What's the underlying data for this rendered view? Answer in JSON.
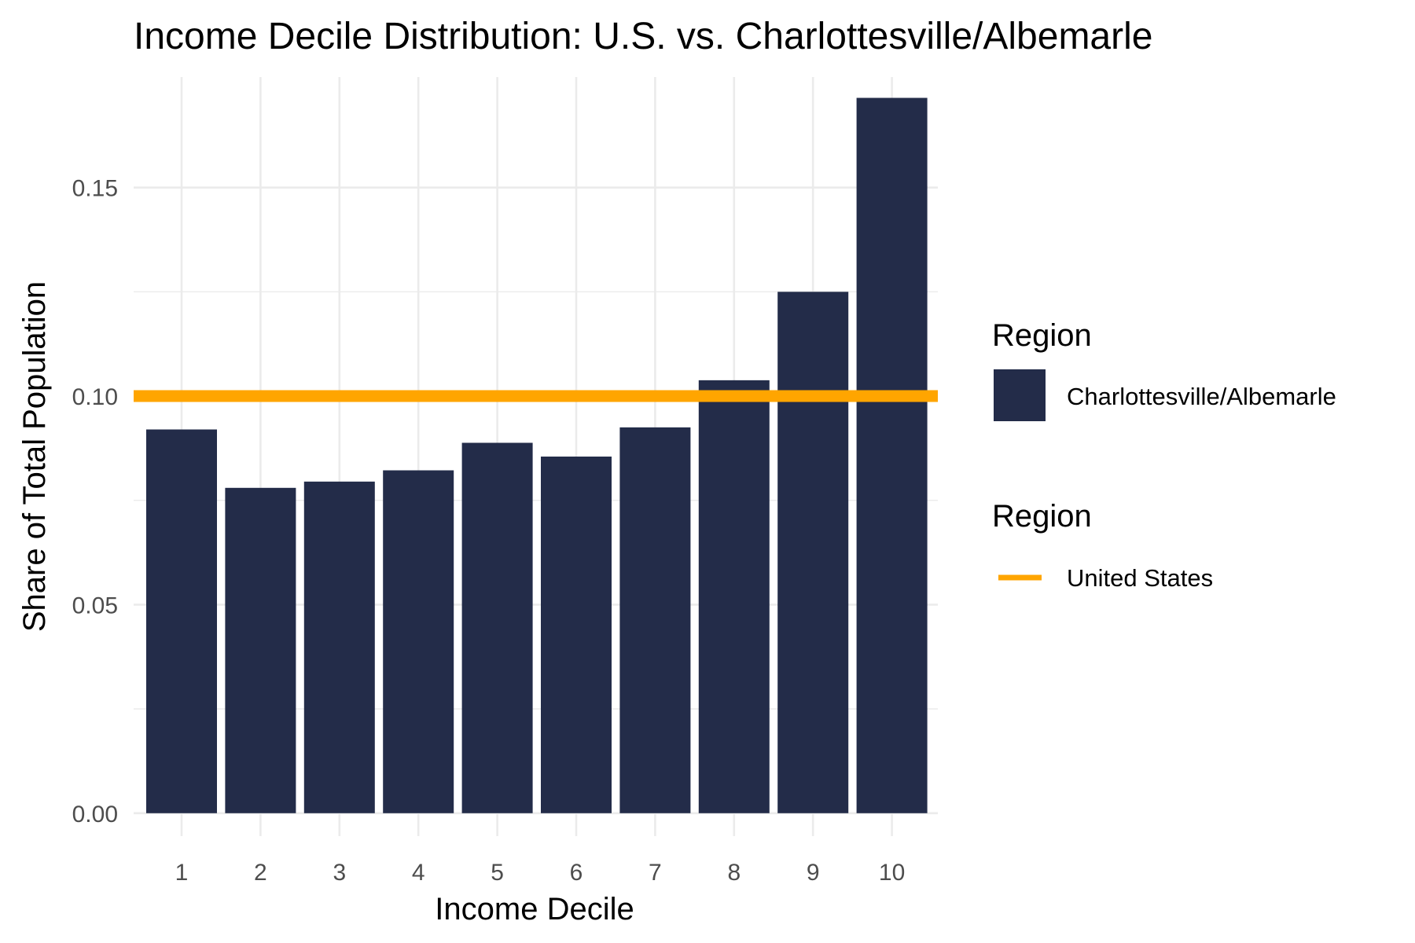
{
  "chart_data": {
    "type": "bar",
    "title": "Income Decile Distribution: U.S. vs. Charlottesville/Albemarle",
    "xlabel": "Income Decile",
    "ylabel": "Share of Total Population",
    "categories": [
      "1",
      "2",
      "3",
      "4",
      "5",
      "6",
      "7",
      "8",
      "9",
      "10"
    ],
    "series": [
      {
        "name": "Charlottesville/Albemarle",
        "values": [
          0.092,
          0.078,
          0.0795,
          0.0822,
          0.0888,
          0.0855,
          0.0925,
          0.1038,
          0.125,
          0.1715
        ],
        "color": "#232c49"
      }
    ],
    "reference_line": {
      "name": "United States",
      "value": 0.1,
      "color": "#ffa500"
    },
    "ylim": [
      -0.0055,
      0.1765
    ],
    "yticks": [
      0.0,
      0.05,
      0.1,
      0.15
    ],
    "ytick_labels": [
      "0.00",
      "0.05",
      "0.10",
      "0.15"
    ],
    "grid": true,
    "legend": {
      "placement": "right",
      "groups": [
        {
          "title": "Region",
          "label": "Charlottesville/Albemarle",
          "key": "bar"
        },
        {
          "title": "Region",
          "label": "United States",
          "key": "line"
        }
      ]
    }
  }
}
